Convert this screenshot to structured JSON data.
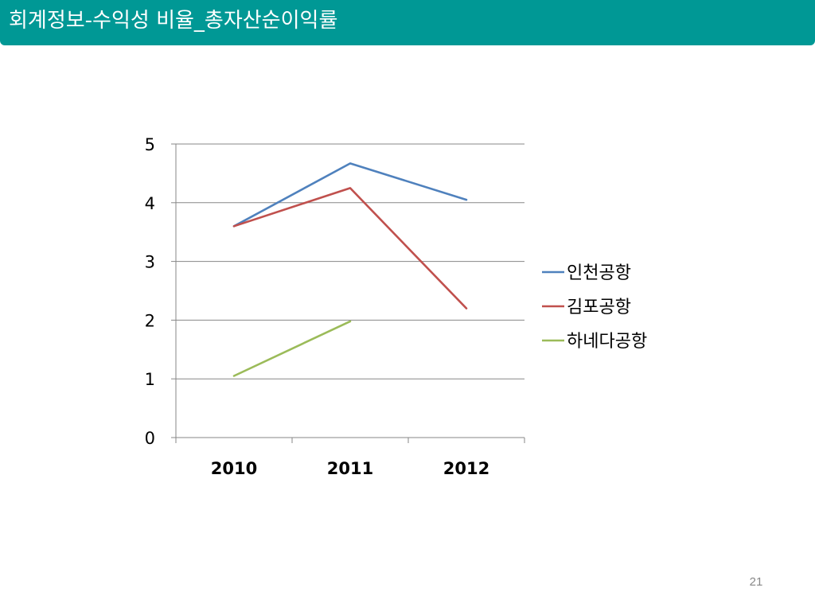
{
  "slide": {
    "title": "회계정보-수익성 비율_총자산순이익률",
    "page_number": "21"
  },
  "colors": {
    "title_bar": "#009895",
    "series": [
      "#4F81BD",
      "#C0504D",
      "#9BBB59"
    ]
  },
  "chart_data": {
    "type": "line",
    "title": "",
    "xlabel": "",
    "ylabel": "",
    "categories": [
      "2010",
      "2011",
      "2012"
    ],
    "ylim": [
      0,
      5
    ],
    "yticks": [
      0,
      1,
      2,
      3,
      4,
      5
    ],
    "grid": true,
    "legend_position": "right",
    "series": [
      {
        "name": "인천공항",
        "values": [
          3.6,
          4.67,
          4.05
        ]
      },
      {
        "name": "김포공항",
        "values": [
          3.6,
          4.25,
          2.2
        ]
      },
      {
        "name": "하네다공항",
        "values": [
          1.05,
          1.98,
          null
        ]
      }
    ]
  }
}
